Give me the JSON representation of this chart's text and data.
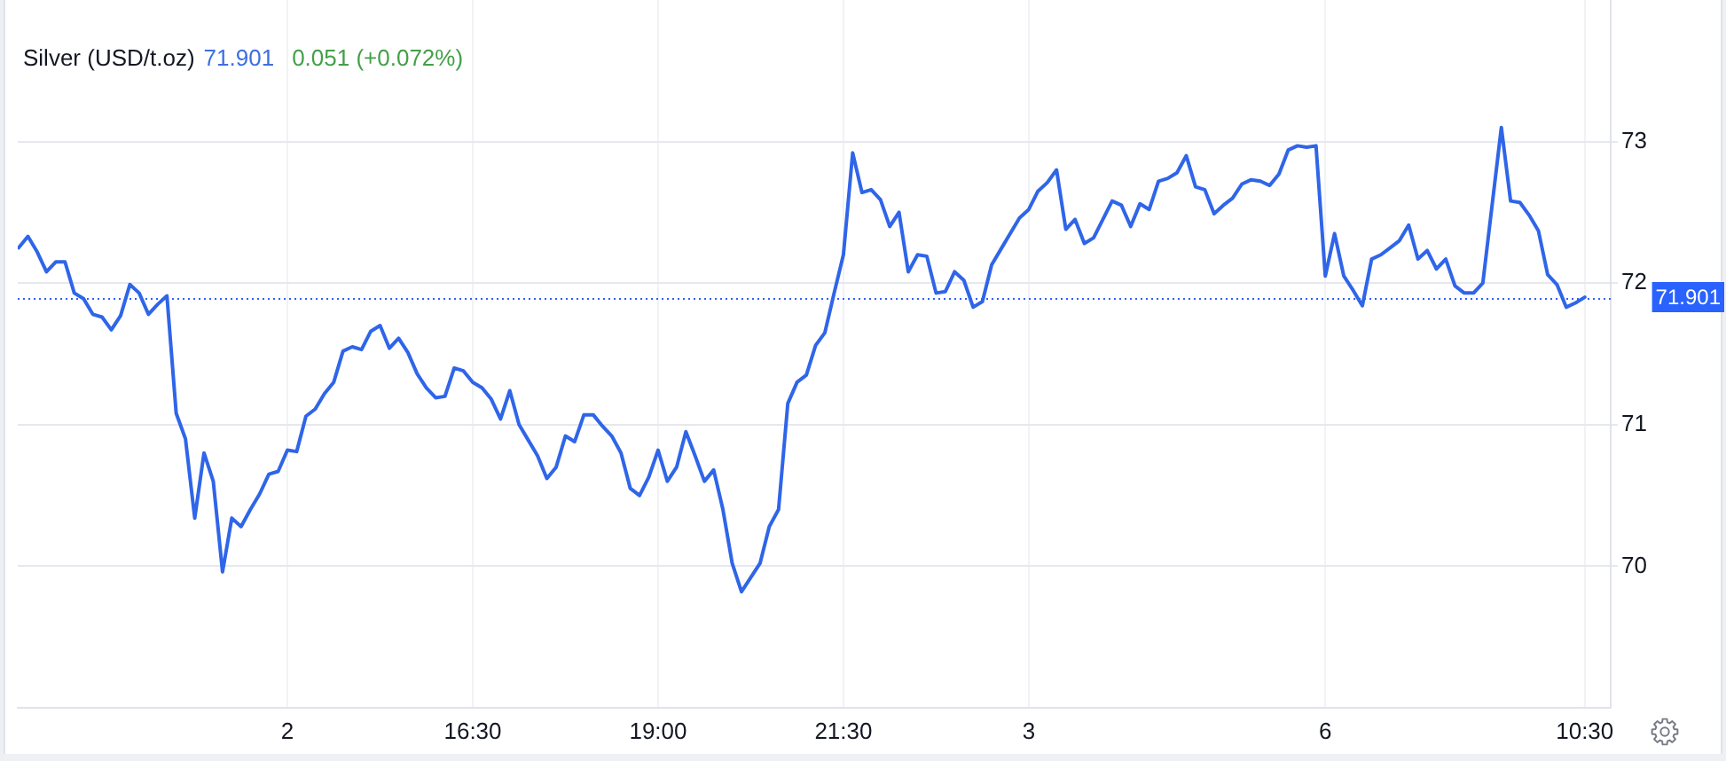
{
  "chart_data": {
    "type": "line",
    "title": "Silver (USD/t.oz)",
    "annotations": [
      "71.901",
      "0.051 (+0.072%)"
    ],
    "categories": [
      null,
      null,
      null,
      null,
      null,
      null,
      null,
      null,
      null,
      null,
      null,
      null,
      null,
      null,
      null,
      null,
      null,
      null,
      null,
      null,
      null,
      null,
      null,
      null,
      null,
      null,
      null,
      null,
      null,
      "2",
      null,
      null,
      null,
      null,
      null,
      null,
      null,
      null,
      null,
      null,
      null,
      null,
      null,
      null,
      null,
      null,
      null,
      null,
      null,
      "16:30",
      null,
      null,
      null,
      null,
      null,
      null,
      null,
      null,
      null,
      null,
      null,
      null,
      null,
      null,
      null,
      null,
      null,
      null,
      null,
      "19:00",
      null,
      null,
      null,
      null,
      null,
      null,
      null,
      null,
      null,
      null,
      null,
      null,
      null,
      null,
      null,
      null,
      null,
      null,
      null,
      "21:30",
      null,
      null,
      null,
      null,
      null,
      null,
      null,
      null,
      null,
      null,
      null,
      null,
      null,
      null,
      null,
      null,
      null,
      null,
      null,
      "3",
      null,
      null,
      null,
      null,
      null,
      null,
      null,
      null,
      null,
      null,
      null,
      null,
      null,
      null,
      null,
      null,
      null,
      null,
      null,
      null,
      null,
      null,
      null,
      null,
      null,
      null,
      null,
      null,
      null,
      null,
      null,
      "6",
      null,
      null,
      null,
      null,
      null,
      null,
      null,
      null,
      null,
      null,
      null,
      null,
      null,
      null,
      null,
      null,
      null,
      null,
      null,
      null,
      null,
      null,
      null,
      null,
      null,
      null,
      null,
      "10:30"
    ],
    "values": [
      72.25,
      72.33,
      72.22,
      72.08,
      72.15,
      72.15,
      71.93,
      71.89,
      71.78,
      71.76,
      71.67,
      71.77,
      71.99,
      71.93,
      71.78,
      71.85,
      71.91,
      71.08,
      70.9,
      70.34,
      70.8,
      70.6,
      69.96,
      70.34,
      70.28,
      70.4,
      70.51,
      70.65,
      70.67,
      70.82,
      70.81,
      71.06,
      71.11,
      71.22,
      71.3,
      71.52,
      71.55,
      71.53,
      71.66,
      71.7,
      71.54,
      71.61,
      71.51,
      71.36,
      71.26,
      71.19,
      71.2,
      71.4,
      71.38,
      71.3,
      71.26,
      71.18,
      71.04,
      71.24,
      71.0,
      70.89,
      70.78,
      70.62,
      70.7,
      70.92,
      70.88,
      71.07,
      71.07,
      70.99,
      70.92,
      70.8,
      70.55,
      70.5,
      70.63,
      70.82,
      70.6,
      70.7,
      70.95,
      70.78,
      70.6,
      70.68,
      70.4,
      70.02,
      69.82,
      69.92,
      70.02,
      70.28,
      70.4,
      71.15,
      71.3,
      71.35,
      71.56,
      71.65,
      71.93,
      72.2,
      72.92,
      72.64,
      72.66,
      72.59,
      72.4,
      72.5,
      72.08,
      72.2,
      72.19,
      71.93,
      71.94,
      72.08,
      72.02,
      71.83,
      71.87,
      72.13,
      72.24,
      72.35,
      72.46,
      72.52,
      72.65,
      72.71,
      72.8,
      72.38,
      72.45,
      72.28,
      72.32,
      72.45,
      72.58,
      72.55,
      72.4,
      72.56,
      72.52,
      72.72,
      72.74,
      72.78,
      72.9,
      72.68,
      72.66,
      72.49,
      72.55,
      72.6,
      72.7,
      72.73,
      72.72,
      72.69,
      72.77,
      72.94,
      72.97,
      72.96,
      72.97,
      72.05,
      72.35,
      72.05,
      71.95,
      71.84,
      72.17,
      72.2,
      72.25,
      72.3,
      72.41,
      72.17,
      72.23,
      72.1,
      72.17,
      71.98,
      71.93,
      71.93,
      72.0,
      72.55,
      73.1,
      72.58,
      72.57,
      72.48,
      72.37,
      72.06,
      71.99,
      71.83,
      71.86,
      71.9
    ],
    "color": "#2f65e8",
    "ylim": [
      69,
      74
    ],
    "yticks": [
      70,
      71,
      72,
      73
    ],
    "grid": true,
    "ref_lines": [
      {
        "axis": "y",
        "value": 71.901,
        "label": "71.901",
        "color": "#2962ff",
        "line_style": "dotted"
      }
    ]
  }
}
